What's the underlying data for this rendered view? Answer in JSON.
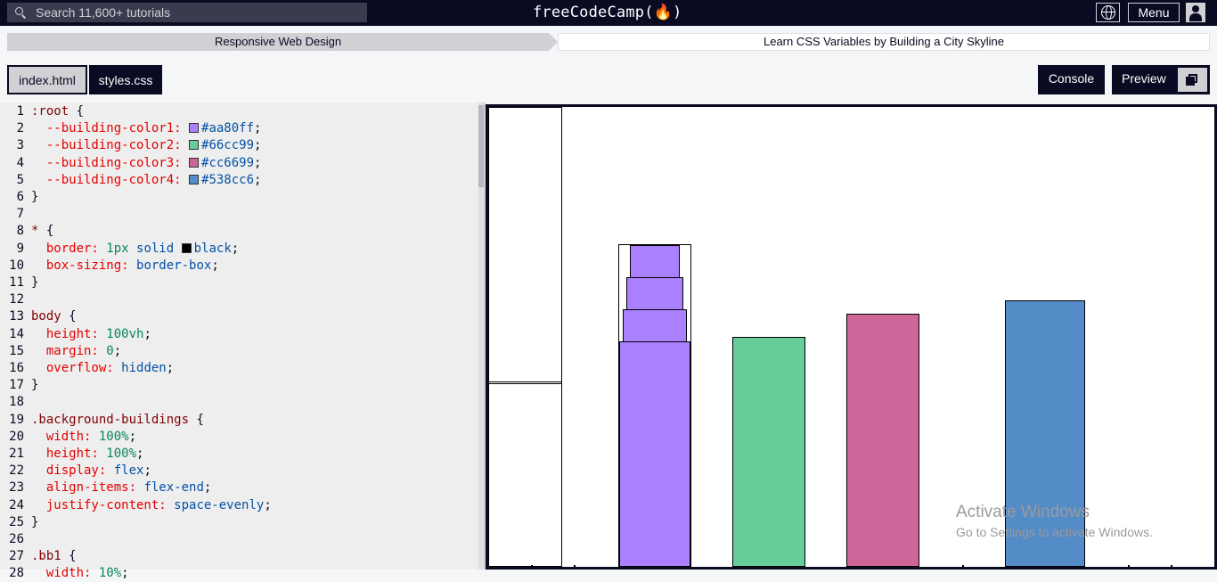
{
  "topnav": {
    "search_placeholder": "Search 11,600+ tutorials",
    "logo": "freeCodeCamp(🔥)",
    "menu_label": "Menu"
  },
  "breadcrumb": {
    "course": "Responsive Web Design",
    "lesson": "Learn CSS Variables by Building a City Skyline"
  },
  "tabs": {
    "index": "index.html",
    "styles": "styles.css"
  },
  "toolbar": {
    "console": "Console",
    "preview": "Preview"
  },
  "code_lines": [
    {
      "n": "1",
      "tokens": [
        {
          "t": ":root",
          "c": "sel"
        },
        {
          "t": " {",
          "c": "pun"
        }
      ]
    },
    {
      "n": "2",
      "tokens": [
        {
          "t": "  --building-color1: ",
          "c": "prop"
        },
        {
          "sw": "#aa80ff"
        },
        {
          "t": "#aa80ff",
          "c": "val"
        },
        {
          "t": ";",
          "c": "pun"
        }
      ]
    },
    {
      "n": "3",
      "tokens": [
        {
          "t": "  --building-color2: ",
          "c": "prop"
        },
        {
          "sw": "#66cc99"
        },
        {
          "t": "#66cc99",
          "c": "val"
        },
        {
          "t": ";",
          "c": "pun"
        }
      ]
    },
    {
      "n": "4",
      "tokens": [
        {
          "t": "  --building-color3: ",
          "c": "prop"
        },
        {
          "sw": "#cc6699"
        },
        {
          "t": "#cc6699",
          "c": "val"
        },
        {
          "t": ";",
          "c": "pun"
        }
      ]
    },
    {
      "n": "5",
      "tokens": [
        {
          "t": "  --building-color4: ",
          "c": "prop"
        },
        {
          "sw": "#538cc6"
        },
        {
          "t": "#538cc6",
          "c": "val"
        },
        {
          "t": ";",
          "c": "pun"
        }
      ]
    },
    {
      "n": "6",
      "tokens": [
        {
          "t": "}",
          "c": "pun"
        }
      ]
    },
    {
      "n": "7",
      "tokens": []
    },
    {
      "n": "8",
      "tokens": [
        {
          "t": "*",
          "c": "sel"
        },
        {
          "t": " {",
          "c": "pun"
        }
      ]
    },
    {
      "n": "9",
      "tokens": [
        {
          "t": "  border: ",
          "c": "prop"
        },
        {
          "t": "1px",
          "c": "num"
        },
        {
          "t": " solid ",
          "c": "val"
        },
        {
          "sw": "#000000"
        },
        {
          "t": "black",
          "c": "val"
        },
        {
          "t": ";",
          "c": "pun"
        }
      ]
    },
    {
      "n": "10",
      "tokens": [
        {
          "t": "  box-sizing: ",
          "c": "prop"
        },
        {
          "t": "border-box",
          "c": "val"
        },
        {
          "t": ";",
          "c": "pun"
        }
      ]
    },
    {
      "n": "11",
      "tokens": [
        {
          "t": "}",
          "c": "pun"
        }
      ]
    },
    {
      "n": "12",
      "tokens": []
    },
    {
      "n": "13",
      "tokens": [
        {
          "t": "body",
          "c": "sel"
        },
        {
          "t": " {",
          "c": "pun"
        }
      ]
    },
    {
      "n": "14",
      "tokens": [
        {
          "t": "  height: ",
          "c": "prop"
        },
        {
          "t": "100vh",
          "c": "num"
        },
        {
          "t": ";",
          "c": "pun"
        }
      ]
    },
    {
      "n": "15",
      "tokens": [
        {
          "t": "  margin: ",
          "c": "prop"
        },
        {
          "t": "0",
          "c": "num"
        },
        {
          "t": ";",
          "c": "pun"
        }
      ]
    },
    {
      "n": "16",
      "tokens": [
        {
          "t": "  overflow: ",
          "c": "prop"
        },
        {
          "t": "hidden",
          "c": "val"
        },
        {
          "t": ";",
          "c": "pun"
        }
      ]
    },
    {
      "n": "17",
      "tokens": [
        {
          "t": "}",
          "c": "pun"
        }
      ]
    },
    {
      "n": "18",
      "tokens": []
    },
    {
      "n": "19",
      "tokens": [
        {
          "t": ".background-buildings",
          "c": "sel"
        },
        {
          "t": " {",
          "c": "pun"
        }
      ]
    },
    {
      "n": "20",
      "tokens": [
        {
          "t": "  width: ",
          "c": "prop"
        },
        {
          "t": "100%",
          "c": "num"
        },
        {
          "t": ";",
          "c": "pun"
        }
      ]
    },
    {
      "n": "21",
      "tokens": [
        {
          "t": "  height: ",
          "c": "prop"
        },
        {
          "t": "100%",
          "c": "num"
        },
        {
          "t": ";",
          "c": "pun"
        }
      ]
    },
    {
      "n": "22",
      "tokens": [
        {
          "t": "  display: ",
          "c": "prop"
        },
        {
          "t": "flex",
          "c": "val"
        },
        {
          "t": ";",
          "c": "pun"
        }
      ]
    },
    {
      "n": "23",
      "tokens": [
        {
          "t": "  align-items: ",
          "c": "prop"
        },
        {
          "t": "flex-end",
          "c": "val"
        },
        {
          "t": ";",
          "c": "pun"
        }
      ]
    },
    {
      "n": "24",
      "tokens": [
        {
          "t": "  justify-content: ",
          "c": "prop"
        },
        {
          "t": "space-evenly",
          "c": "val"
        },
        {
          "t": ";",
          "c": "pun"
        }
      ]
    },
    {
      "n": "25",
      "tokens": [
        {
          "t": "}",
          "c": "pun"
        }
      ]
    },
    {
      "n": "26",
      "tokens": []
    },
    {
      "n": "27",
      "tokens": [
        {
          "t": ".bb1",
          "c": "sel"
        },
        {
          "t": " {",
          "c": "pun"
        }
      ]
    },
    {
      "n": "28",
      "tokens": [
        {
          "t": "  width: ",
          "c": "prop"
        },
        {
          "t": "10%",
          "c": "num"
        },
        {
          "t": ";",
          "c": "pun"
        }
      ]
    }
  ],
  "preview_colors": {
    "building1": "#aa80ff",
    "building2": "#66cc99",
    "building3": "#cc6699",
    "building4": "#538cc6"
  },
  "watermark": {
    "title": "Activate Windows",
    "subtitle": "Go to Settings to activate Windows."
  }
}
